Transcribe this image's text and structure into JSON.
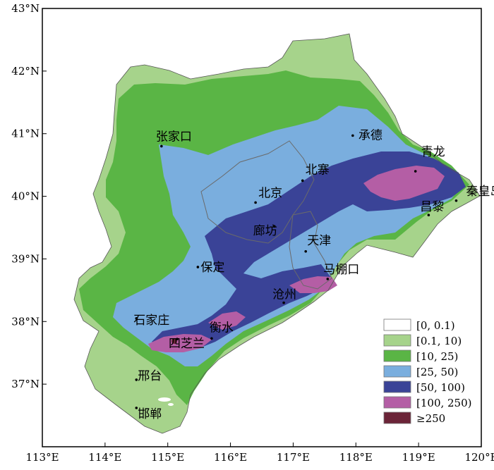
{
  "map": {
    "x_ticks": [
      "113°E",
      "114°E",
      "115°E",
      "116°E",
      "117°E",
      "118°E",
      "119°E",
      "120°E"
    ],
    "y_ticks": [
      "43°N",
      "42°N",
      "41°N",
      "40°N",
      "39°N",
      "38°N",
      "37°N"
    ],
    "colors": {
      "c0": "#ffffff",
      "c1": "#a6d38b",
      "c2": "#5ab545",
      "c3": "#7aaede",
      "c4": "#3a4397",
      "c5": "#b45ea5",
      "c6": "#6b2438",
      "border": "#6a6a6a",
      "frame": "#000000"
    },
    "cities": [
      {
        "id": "zhangjiakou",
        "label": "张家口",
        "lon": 114.9,
        "lat": 40.8
      },
      {
        "id": "chengde",
        "label": "承德",
        "lon": 117.95,
        "lat": 40.97
      },
      {
        "id": "beizhai",
        "label": "北寨",
        "lon": 117.15,
        "lat": 40.25
      },
      {
        "id": "qinglong",
        "label": "青龙",
        "lon": 118.95,
        "lat": 40.4
      },
      {
        "id": "beijing",
        "label": "北京",
        "lon": 116.4,
        "lat": 39.9
      },
      {
        "id": "qinhuangdao",
        "label": "秦皇岛",
        "lon": 119.6,
        "lat": 39.93
      },
      {
        "id": "changli",
        "label": "昌黎",
        "lon": 119.16,
        "lat": 39.7
      },
      {
        "id": "langfang",
        "label": "廊坊",
        "lon": 116.7,
        "lat": 39.52
      },
      {
        "id": "tianjin",
        "label": "天津",
        "lon": 117.2,
        "lat": 39.12
      },
      {
        "id": "baoding",
        "label": "保定",
        "lon": 115.48,
        "lat": 38.87
      },
      {
        "id": "mapengkou",
        "label": "马棚口",
        "lon": 117.55,
        "lat": 38.68
      },
      {
        "id": "cangzhou",
        "label": "沧州",
        "lon": 116.85,
        "lat": 38.3
      },
      {
        "id": "shijiazhuang",
        "label": "石家庄",
        "lon": 114.5,
        "lat": 38.05
      },
      {
        "id": "hengshui",
        "label": "衡水",
        "lon": 115.7,
        "lat": 37.73
      },
      {
        "id": "sizhilan",
        "label": "四芝兰",
        "lon": 115.15,
        "lat": 37.72
      },
      {
        "id": "xingtai",
        "label": "邢台",
        "lon": 114.5,
        "lat": 37.07
      },
      {
        "id": "handan",
        "label": "邯郸",
        "lon": 114.5,
        "lat": 36.62
      }
    ]
  },
  "legend": {
    "items": [
      {
        "label": "[0, 0.1)",
        "color": "#ffffff"
      },
      {
        "label": "[0.1, 10)",
        "color": "#a6d38b"
      },
      {
        "label": "[10, 25)",
        "color": "#5ab545"
      },
      {
        "label": "[25, 50)",
        "color": "#7aaede"
      },
      {
        "label": "[50, 100)",
        "color": "#3a4397"
      },
      {
        "label": "[100, 250)",
        "color": "#b45ea5"
      },
      {
        "label": "≥250",
        "color": "#6b2438"
      }
    ]
  }
}
